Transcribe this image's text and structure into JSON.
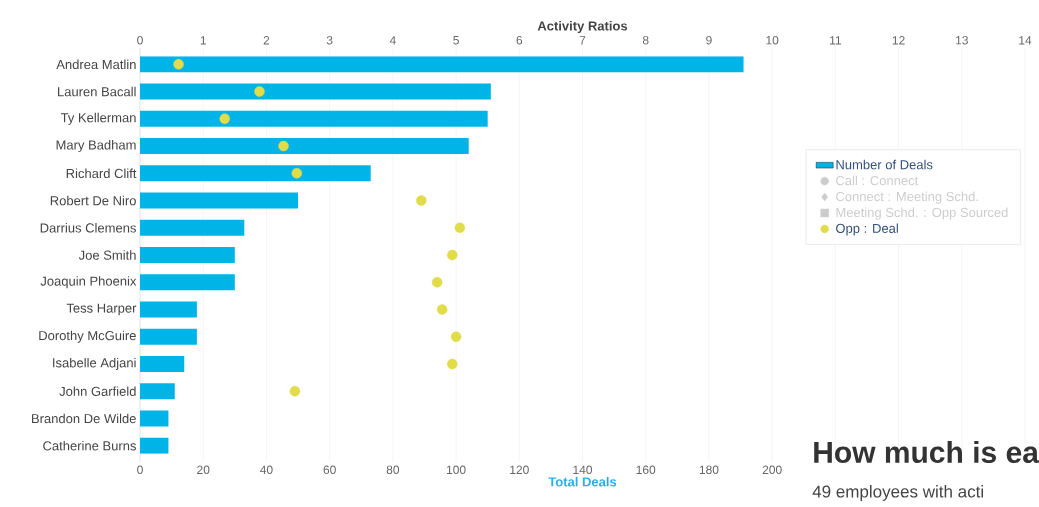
{
  "chart_data": {
    "type": "bar",
    "orientation": "horizontal",
    "x2label": "Activity Ratios",
    "xlabel": "Total Deals",
    "categories": [
      "Andrea Matlin",
      "Lauren Bacall",
      "Ty Kellerman",
      "Mary Badham",
      "Richard Clift",
      "Robert De Niro",
      "Darrius Clemens",
      "Joe Smith",
      "Joaquin Phoenix",
      "Tess Harper",
      "Dorothy McGuire",
      "Isabelle Adjani",
      "John Garfield",
      "Brandon De Wilde",
      "Catherine Burns"
    ],
    "series": [
      {
        "name": "Number of Deals",
        "color": "#00b4e8",
        "values": [
          191,
          111,
          110,
          104,
          73,
          50,
          33,
          30,
          30,
          18,
          18,
          14,
          11,
          9,
          9
        ]
      },
      {
        "name": "Call : Connect",
        "type": "scatter",
        "axis": "x2",
        "marker": "circle",
        "color": "#cccccc",
        "values": [
          null,
          null,
          null,
          null,
          null,
          null,
          null,
          null,
          null,
          null,
          null,
          null,
          null,
          null,
          null
        ]
      },
      {
        "name": "Connect : Meeting Schd.",
        "type": "scatter",
        "axis": "x2",
        "marker": "diamond",
        "color": "#cccccc",
        "values": [
          null,
          null,
          null,
          null,
          null,
          null,
          null,
          null,
          null,
          null,
          null,
          null,
          null,
          null,
          null
        ]
      },
      {
        "name": "Meeting Schd. : Opp Sourced",
        "type": "scatter",
        "axis": "x2",
        "marker": "square",
        "color": "#cccccc",
        "values": [
          null,
          null,
          null,
          null,
          null,
          null,
          null,
          null,
          null,
          null,
          null,
          null,
          null,
          null,
          null
        ]
      },
      {
        "name": "Opp : Deal",
        "type": "scatter",
        "axis": "x2",
        "marker": "circle",
        "color": "#e0dc4a",
        "values": [
          0.61,
          1.89,
          1.34,
          2.27,
          2.48,
          4.45,
          5.06,
          4.94,
          4.7,
          4.78,
          5.0,
          4.94,
          2.45,
          null,
          null
        ]
      }
    ],
    "xlim": [
      0,
      280
    ],
    "xticks": [
      0,
      20,
      40,
      60,
      80,
      100,
      120,
      140,
      160,
      180,
      200
    ],
    "x2lim": [
      0,
      14
    ],
    "x2ticks": [
      0,
      1,
      2,
      3,
      4,
      5,
      6,
      7,
      8,
      9,
      10,
      11,
      12,
      13,
      14
    ],
    "grid": "x",
    "legend": "right",
    "annotations": [
      "How much is ea",
      "49 employees with acti"
    ]
  }
}
